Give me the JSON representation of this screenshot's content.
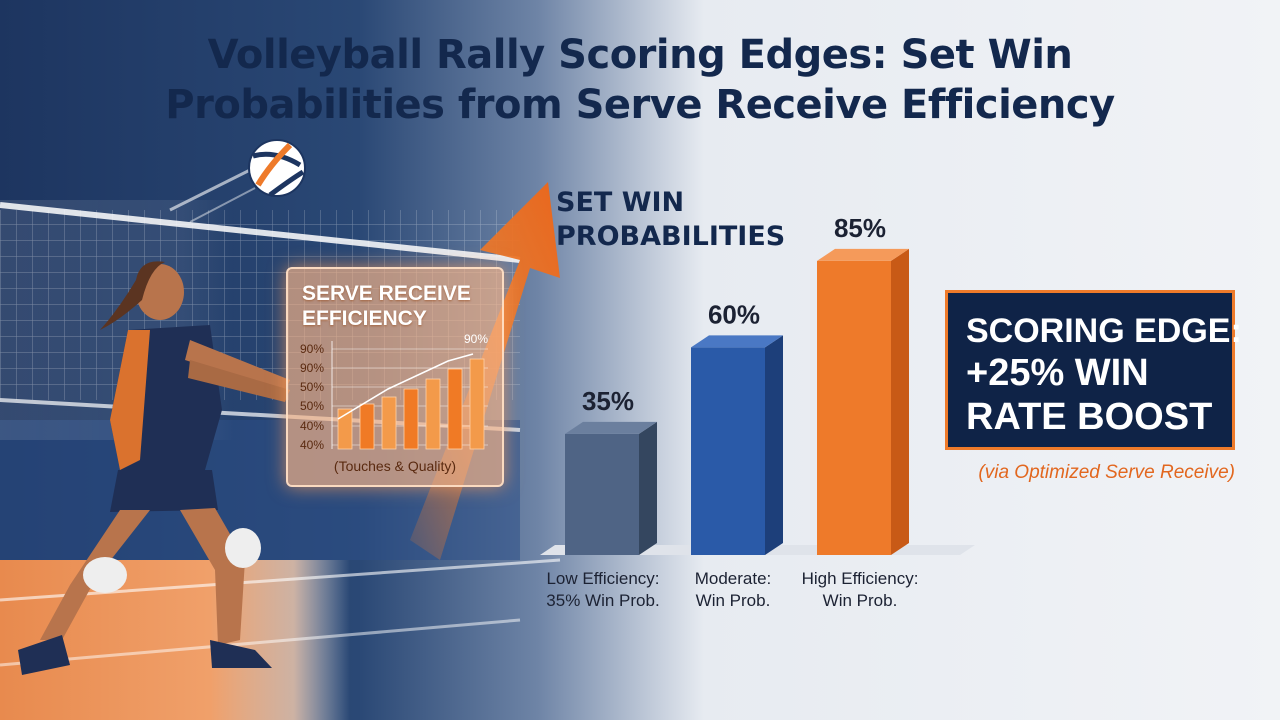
{
  "title": {
    "line1": "Volleyball Rally Scoring Edges: Set Win",
    "line2": "Probabilities from Serve Receive Efficiency"
  },
  "colors": {
    "navy": "#13284d",
    "orange": "#ee7a2a",
    "low_bar": "#4f6485",
    "moderate_bar": "#2a5aa8",
    "high_bar": "#ee7a2a"
  },
  "inset_chart": {
    "title_line1": "SERVE RECEIVE",
    "title_line2": "EFFICIENCY",
    "y_ticks": [
      "90%",
      "90%",
      "50%",
      "50%",
      "40%",
      "40%"
    ],
    "top_label": "90%",
    "caption": "(Touches & Quality)",
    "bar_heights_pct": [
      40,
      45,
      52,
      60,
      70,
      80,
      90
    ]
  },
  "chart_data": {
    "type": "bar",
    "title_line1": "SET WIN",
    "title_line2": "PROBABILITIES",
    "categories": [
      {
        "line1": "Low Efficiency:",
        "line2": "35% Win Prob."
      },
      {
        "line1": "Moderate:",
        "line2": "Win Prob."
      },
      {
        "line1": "High Efficiency:",
        "line2": "Win Prob."
      }
    ],
    "values": [
      35,
      60,
      85
    ],
    "value_labels": [
      "35%",
      "60%",
      "85%"
    ],
    "ylim": [
      0,
      100
    ],
    "grid": false
  },
  "scoring_edge": {
    "line1": "SCORING EDGE:",
    "line2": "+25% WIN",
    "line3": "RATE BOOST",
    "note": "(via Optimized Serve Receive)"
  }
}
